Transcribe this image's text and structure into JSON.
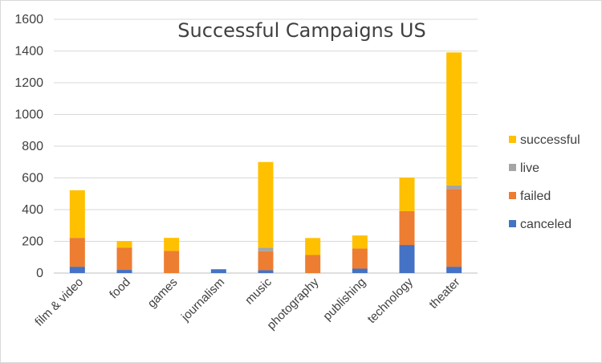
{
  "chart_data": {
    "type": "bar",
    "stacked": true,
    "title": "Successful Campaigns US",
    "xlabel": "",
    "ylabel": "",
    "ylim": [
      0,
      1600
    ],
    "yticks": [
      0,
      200,
      400,
      600,
      800,
      1000,
      1200,
      1400,
      1600
    ],
    "grid": "horizontal",
    "legend_position": "right",
    "categories": [
      "film & video",
      "food",
      "games",
      "journalism",
      "music",
      "photography",
      "publishing",
      "technology",
      "theater"
    ],
    "series": [
      {
        "name": "canceled",
        "color": "#4472C4",
        "values": [
          40,
          20,
          0,
          24,
          18,
          0,
          28,
          177,
          40
        ]
      },
      {
        "name": "failed",
        "color": "#ED7D31",
        "values": [
          182,
          141,
          140,
          0,
          120,
          114,
          127,
          213,
          490
        ]
      },
      {
        "name": "live",
        "color": "#A5A5A5",
        "values": [
          0,
          0,
          0,
          0,
          22,
          0,
          0,
          0,
          23
        ]
      },
      {
        "name": "successful",
        "color": "#FFC000",
        "values": [
          300,
          41,
          82,
          0,
          540,
          107,
          82,
          212,
          838
        ]
      }
    ]
  }
}
